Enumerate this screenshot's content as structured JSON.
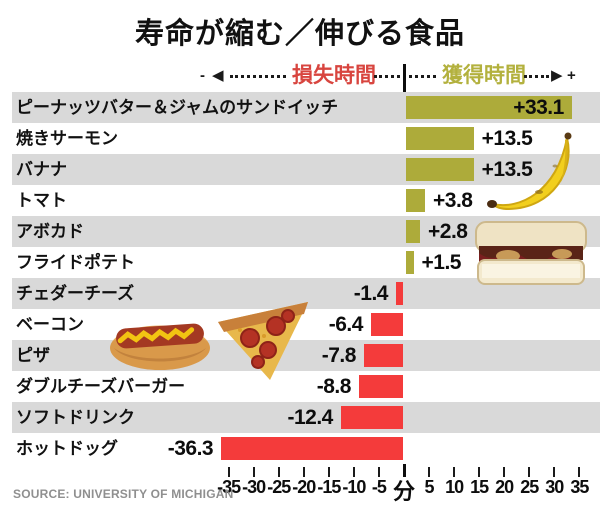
{
  "title": "寿命が縮む／伸びる食品",
  "legend": {
    "minus": "-",
    "plus": "+",
    "left_arrow": "◀",
    "right_arrow": "▶",
    "loss_label": "損失時間",
    "gain_label": "獲得時間",
    "loss_color": "#d8453f",
    "gain_color": "#b3b13e"
  },
  "chart_data": {
    "type": "bar",
    "orientation": "horizontal",
    "unit": "分",
    "categories": [
      "ピーナッツバター＆ジャムのサンドイッチ",
      "焼きサーモン",
      "バナナ",
      "トマト",
      "アボカド",
      "フライドポテト",
      "チェダーチーズ",
      "ベーコン",
      "ピザ",
      "ダブルチーズバーガー",
      "ソフトドリンク",
      "ホットドッグ"
    ],
    "values": [
      33.1,
      13.5,
      13.5,
      3.8,
      2.8,
      1.5,
      -1.4,
      -6.4,
      -7.8,
      -8.8,
      -12.4,
      -36.3
    ],
    "value_labels": [
      "+33.1",
      "+13.5",
      "+13.5",
      "+3.8",
      "+2.8",
      "+1.5",
      "-1.4",
      "-6.4",
      "-7.8",
      "-8.8",
      "-12.4",
      "-36.3"
    ],
    "axis_tick_labels": [
      "-35",
      "-30",
      "-25",
      "-20",
      "-15",
      "-10",
      "-5",
      "分",
      "5",
      "10",
      "15",
      "20",
      "25",
      "30",
      "35"
    ],
    "xlim": [
      -37,
      36
    ],
    "grid": false,
    "positive_color": "#adab3a",
    "negative_color": "#f43b3b",
    "row_band_colors": [
      "#d9d9d9",
      "#ffffff"
    ]
  },
  "source": "SOURCE: UNIVERSITY OF MICHIGAN",
  "food_images": [
    "banana",
    "pbj-sandwich",
    "hot-dog",
    "pizza-slice"
  ]
}
